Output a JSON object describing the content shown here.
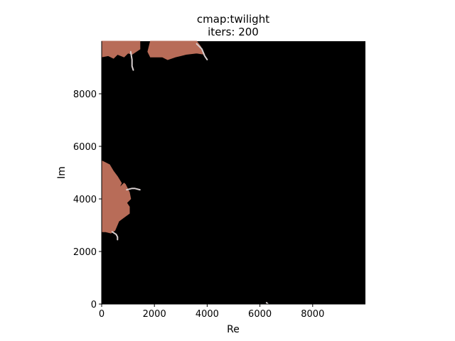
{
  "chart_data": {
    "type": "heatmap",
    "title_lines": [
      "cmap:twilight",
      "iters: 200"
    ],
    "xlabel": "Re",
    "ylabel": "Im",
    "xlim": [
      0,
      10000
    ],
    "ylim": [
      0,
      10000
    ],
    "x_ticks": [
      0,
      2000,
      4000,
      6000,
      8000
    ],
    "y_ticks": [
      0,
      2000,
      4000,
      6000,
      8000
    ],
    "x_tick_labels": [
      "0",
      "2000",
      "4000",
      "6000",
      "8000"
    ],
    "y_tick_labels": [
      "0",
      "2000",
      "4000",
      "6000",
      "8000"
    ],
    "colormap": "twilight",
    "background_color": "#000000",
    "fill_color": "#b86c58",
    "edge_color": "#d8cfd0",
    "regions": [
      {
        "name": "left-lobe",
        "polygon": [
          [
            0,
            5450
          ],
          [
            300,
            5300
          ],
          [
            450,
            5050
          ],
          [
            600,
            4850
          ],
          [
            750,
            4600
          ],
          [
            700,
            4500
          ],
          [
            650,
            4400
          ],
          [
            850,
            4600
          ],
          [
            900,
            4550
          ],
          [
            1050,
            4250
          ],
          [
            1100,
            4000
          ],
          [
            950,
            3850
          ],
          [
            1050,
            3700
          ],
          [
            1050,
            3450
          ],
          [
            850,
            3300
          ],
          [
            650,
            3150
          ],
          [
            500,
            2800
          ],
          [
            350,
            2700
          ],
          [
            150,
            2750
          ],
          [
            0,
            2750
          ]
        ]
      },
      {
        "name": "top-left-lobe",
        "polygon": [
          [
            0,
            10000
          ],
          [
            1450,
            10000
          ],
          [
            1450,
            9700
          ],
          [
            1150,
            9500
          ],
          [
            1000,
            9550
          ],
          [
            850,
            9400
          ],
          [
            600,
            9500
          ],
          [
            450,
            9350
          ],
          [
            250,
            9450
          ],
          [
            0,
            9400
          ]
        ]
      },
      {
        "name": "top-center-lobe",
        "polygon": [
          [
            1850,
            10000
          ],
          [
            3600,
            10000
          ],
          [
            3750,
            9800
          ],
          [
            3900,
            9500
          ],
          [
            3600,
            9550
          ],
          [
            3200,
            9500
          ],
          [
            2800,
            9400
          ],
          [
            2500,
            9300
          ],
          [
            2300,
            9400
          ],
          [
            1850,
            9400
          ],
          [
            1750,
            9600
          ]
        ]
      }
    ],
    "filaments": [
      {
        "name": "left-filament-a",
        "points": [
          [
            950,
            4350
          ],
          [
            1150,
            4400
          ],
          [
            1250,
            4400
          ],
          [
            1450,
            4350
          ]
        ]
      },
      {
        "name": "left-filament-b",
        "points": [
          [
            400,
            2750
          ],
          [
            550,
            2650
          ],
          [
            600,
            2550
          ],
          [
            600,
            2450
          ]
        ]
      },
      {
        "name": "top-filament-a",
        "points": [
          [
            1100,
            9600
          ],
          [
            1150,
            9300
          ],
          [
            1150,
            9050
          ],
          [
            1200,
            8900
          ]
        ]
      },
      {
        "name": "top-filament-b",
        "points": [
          [
            3600,
            9900
          ],
          [
            3800,
            9700
          ],
          [
            3900,
            9450
          ],
          [
            4000,
            9300
          ]
        ]
      },
      {
        "name": "bottom-speck",
        "points": [
          [
            6250,
            50
          ],
          [
            6300,
            10
          ]
        ]
      }
    ]
  }
}
